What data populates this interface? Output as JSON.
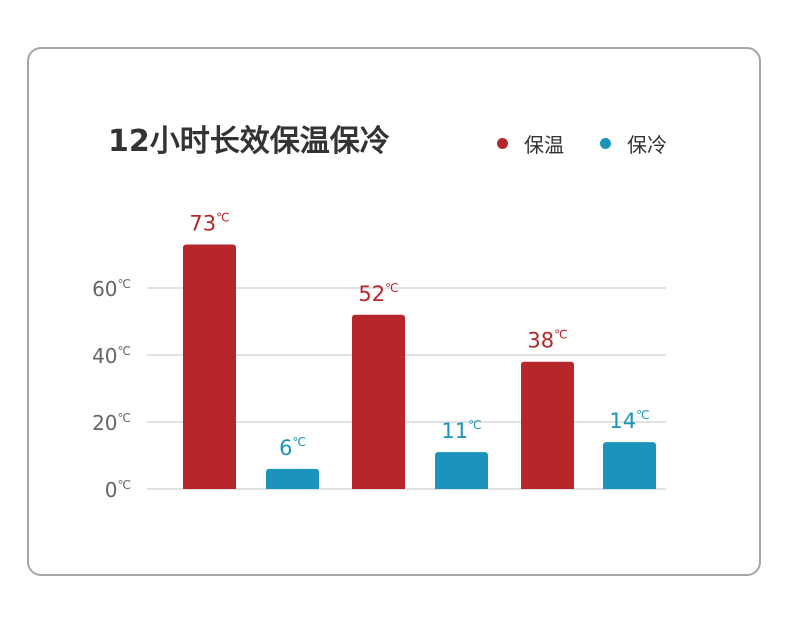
{
  "chart_data": {
    "type": "bar",
    "title": "12小时长效保温保冷",
    "unit": "℃",
    "categories": [
      "",
      "",
      ""
    ],
    "series": [
      {
        "name": "保温",
        "color": "#b5272a",
        "values": [
          73,
          52,
          38
        ]
      },
      {
        "name": "保冷",
        "color": "#1b93bd",
        "values": [
          6,
          11,
          14
        ]
      }
    ],
    "yticks": [
      0,
      20,
      40,
      60
    ],
    "ylim": [
      0,
      73
    ],
    "grid": true,
    "legend_position": "top-right"
  }
}
